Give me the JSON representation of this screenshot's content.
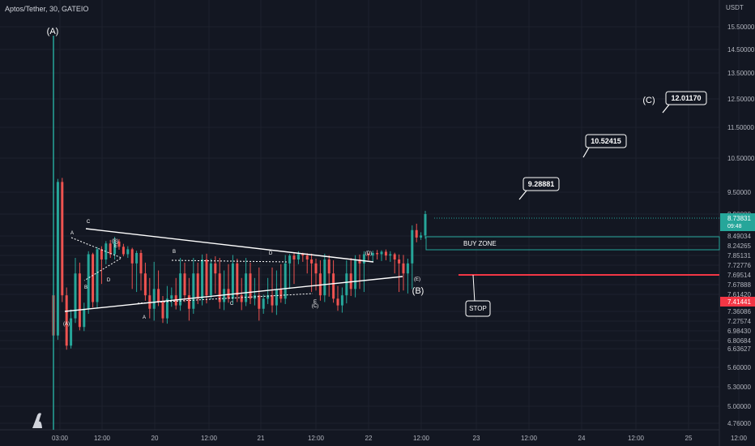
{
  "header": {
    "title": "Aptos/Tether, 30, GATEIO"
  },
  "chart_data": {
    "type": "candlestick",
    "symbol": "Aptos/Tether",
    "exchange": "GATEIO",
    "timeframe": "30",
    "currency": "USDT",
    "last_price": 8.73831,
    "countdown": "09:48",
    "stop_price": 7.41441,
    "ylim": [
      4.7,
      15.9
    ],
    "y_ticks": [
      "15.50000",
      "14.50000",
      "13.50000",
      "12.50000",
      "11.50000",
      "10.50000",
      "9.50000",
      "8.90000",
      "8.49034",
      "8.24265",
      "7.85131",
      "7.72776",
      "7.69514",
      "7.67888",
      "7.61420",
      "7.36086",
      "7.27574",
      "6.98430",
      "6.80684",
      "6.63627",
      "5.60000",
      "5.30000",
      "5.00000",
      "4.76000"
    ],
    "x_ticks": [
      "03:00",
      "12:00",
      "20",
      "12:00",
      "21",
      "12:00",
      "22",
      "12:00",
      "23",
      "12:00",
      "24",
      "12:00",
      "25",
      "12:00"
    ],
    "targets": [
      "9.28881",
      "10.52415",
      "12.01170"
    ],
    "zones": {
      "buy": "BUY ZONE",
      "stop": "STOP"
    },
    "wave_labels": {
      "major": [
        "(A)",
        "(B)",
        "(C)"
      ],
      "minor": [
        "A",
        "B",
        "C",
        "D",
        "E",
        "(A)",
        "(B)",
        "(C)",
        "(D)",
        "(E)"
      ]
    },
    "series": [
      {
        "values": [
          6.9,
          9.8,
          7.6,
          6.7,
          7.3,
          7.7,
          7.1,
          7.4,
          7.9,
          7.5,
          8.1,
          7.8,
          8.3,
          7.9,
          8.35,
          8.2,
          7.9,
          8.1,
          7.75,
          7.95,
          7.7,
          7.6,
          7.4,
          7.65,
          7.5,
          7.3,
          7.55,
          7.6,
          7.45,
          7.7,
          7.6,
          7.4,
          7.7,
          7.55,
          7.8,
          7.6,
          7.75,
          7.7,
          7.5,
          7.65,
          7.55,
          7.75,
          7.6,
          7.5,
          7.7,
          7.55,
          7.6,
          7.4,
          7.55,
          7.6,
          7.45,
          7.65,
          7.55,
          7.75,
          7.85,
          7.8,
          7.9,
          7.85,
          7.8,
          7.75,
          7.7,
          7.6,
          7.8,
          7.7,
          7.55,
          7.45,
          7.6,
          7.7,
          7.65,
          7.8,
          7.75,
          7.9,
          7.85,
          7.95,
          7.9,
          8.0,
          7.85,
          7.9,
          7.8,
          7.75,
          7.7,
          7.75,
          8.6,
          8.45,
          8.5,
          8.9
        ]
      }
    ]
  }
}
